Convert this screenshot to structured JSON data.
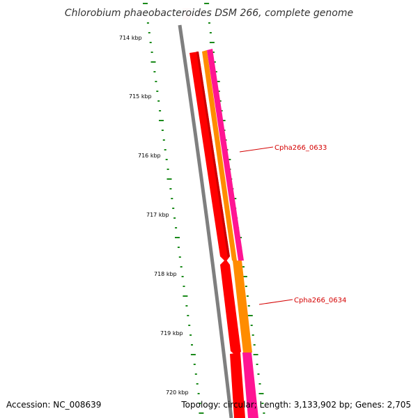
{
  "title": "Chlorobium phaeobacteroides DSM 266, complete genome",
  "footer": {
    "accession": "Accession: NC_008639",
    "topology": "Topology: circular; Length: 3,133,902 bp; Genes: 2,705"
  },
  "ticks": [
    "714 kbp",
    "715 kbp",
    "716 kbp",
    "717 kbp",
    "718 kbp",
    "719 kbp",
    "720 kbp"
  ],
  "features": [
    {
      "label": "Cpha266_0633",
      "color": "#d40000"
    },
    {
      "label": "Cpha266_0634",
      "color": "#d40000"
    }
  ],
  "colors": {
    "backbone": "#7f7f7f",
    "track_red": "#ff0000",
    "track_red_dark": "#cc0000",
    "track_orange": "#ff8c00",
    "track_pink": "#ff1493",
    "gc_skew": "#1a8a1a",
    "highlight": "#ffcccc"
  }
}
